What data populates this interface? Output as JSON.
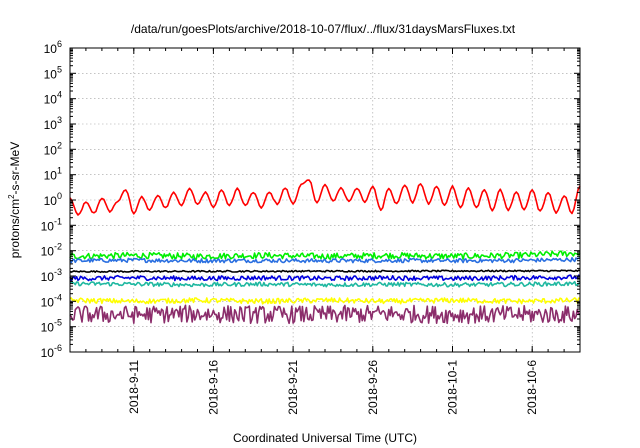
{
  "chart_data": {
    "type": "line",
    "title": "/data/run/goesPlots/archive/2018-10-07/flux/../flux/31daysMarsFluxes.txt",
    "xlabel": "Coordinated Universal Time (UTC)",
    "ylabel_main": "protons/cm",
    "ylabel_sup": "2",
    "ylabel_tail": "-s-sr-MeV",
    "yscale": "log",
    "ylim": [
      1e-06,
      1000000.0
    ],
    "xlim": [
      "2018-09-07T00:00",
      "2018-10-09T00:00"
    ],
    "grid": true,
    "x_ticks": [
      {
        "date": "2018-09-11",
        "label": "2018-9-11"
      },
      {
        "date": "2018-09-16",
        "label": "2018-9-16"
      },
      {
        "date": "2018-09-21",
        "label": "2018-9-21"
      },
      {
        "date": "2018-09-26",
        "label": "2018-9-26"
      },
      {
        "date": "2018-10-01",
        "label": "2018-10-1"
      },
      {
        "date": "2018-10-06",
        "label": "2018-10-6"
      }
    ],
    "y_ticks": [
      {
        "value": 1e-06,
        "base": "10",
        "exp": "-6"
      },
      {
        "value": 1e-05,
        "base": "10",
        "exp": "-5"
      },
      {
        "value": 0.0001,
        "base": "10",
        "exp": "-4"
      },
      {
        "value": 0.001,
        "base": "10",
        "exp": "-3"
      },
      {
        "value": 0.01,
        "base": "10",
        "exp": "-2"
      },
      {
        "value": 0.1,
        "base": "10",
        "exp": "-1"
      },
      {
        "value": 1,
        "base": "10",
        "exp": "0"
      },
      {
        "value": 10.0,
        "base": "10",
        "exp": "1"
      },
      {
        "value": 100.0,
        "base": "10",
        "exp": "2"
      },
      {
        "value": 1000.0,
        "base": "10",
        "exp": "3"
      },
      {
        "value": 10000.0,
        "base": "10",
        "exp": "4"
      },
      {
        "value": 100000.0,
        "base": "10",
        "exp": "5"
      },
      {
        "value": 1000000.0,
        "base": "10",
        "exp": "6"
      }
    ],
    "series": [
      {
        "color": "#ff0000",
        "values": [
          [
            "2018-09-07",
            1.2
          ],
          [
            "2018-09-07T12:00",
            0.25
          ],
          [
            "2018-09-08",
            0.8
          ],
          [
            "2018-09-08T12:00",
            0.3
          ],
          [
            "2018-09-09",
            1.2
          ],
          [
            "2018-09-09T12:00",
            0.35
          ],
          [
            "2018-09-10",
            0.9
          ],
          [
            "2018-09-10T12:00",
            2.5
          ],
          [
            "2018-09-11",
            0.3
          ],
          [
            "2018-09-11T12:00",
            1.3
          ],
          [
            "2018-09-12",
            0.4
          ],
          [
            "2018-09-12T12:00",
            1.5
          ],
          [
            "2018-09-13",
            0.5
          ],
          [
            "2018-09-13T12:00",
            2.0
          ],
          [
            "2018-09-14",
            0.6
          ],
          [
            "2018-09-14T12:00",
            3.0
          ],
          [
            "2018-09-15",
            0.7
          ],
          [
            "2018-09-15T12:00",
            2.0
          ],
          [
            "2018-09-16",
            0.5
          ],
          [
            "2018-09-16T12:00",
            2.5
          ],
          [
            "2018-09-17",
            0.6
          ],
          [
            "2018-09-17T12:00",
            2.8
          ],
          [
            "2018-09-18",
            0.6
          ],
          [
            "2018-09-18T12:00",
            2.0
          ],
          [
            "2018-09-19",
            0.5
          ],
          [
            "2018-09-19T12:00",
            2.0
          ],
          [
            "2018-09-20",
            0.7
          ],
          [
            "2018-09-20T12:00",
            3.0
          ],
          [
            "2018-09-21",
            0.7
          ],
          [
            "2018-09-21T12:00",
            4.0
          ],
          [
            "2018-09-22",
            6.0
          ],
          [
            "2018-09-22T12:00",
            0.8
          ],
          [
            "2018-09-23",
            4.0
          ],
          [
            "2018-09-23T12:00",
            0.9
          ],
          [
            "2018-09-24",
            3.0
          ],
          [
            "2018-09-24T12:00",
            0.9
          ],
          [
            "2018-09-25",
            3.0
          ],
          [
            "2018-09-25T12:00",
            0.8
          ],
          [
            "2018-09-26",
            3.5
          ],
          [
            "2018-09-26T12:00",
            0.4
          ],
          [
            "2018-09-27",
            3.0
          ],
          [
            "2018-09-27T12:00",
            0.7
          ],
          [
            "2018-09-28",
            4.0
          ],
          [
            "2018-09-28T12:00",
            0.8
          ],
          [
            "2018-09-29",
            4.5
          ],
          [
            "2018-09-29T12:00",
            0.7
          ],
          [
            "2018-09-30",
            3.5
          ],
          [
            "2018-09-30T12:00",
            0.6
          ],
          [
            "2018-10-01",
            3.5
          ],
          [
            "2018-10-01T12:00",
            0.5
          ],
          [
            "2018-10-02",
            3.0
          ],
          [
            "2018-10-02T12:00",
            0.5
          ],
          [
            "2018-10-03",
            2.5
          ],
          [
            "2018-10-03T12:00",
            0.4
          ],
          [
            "2018-10-04",
            2.5
          ],
          [
            "2018-10-04T12:00",
            0.4
          ],
          [
            "2018-10-05",
            2.0
          ],
          [
            "2018-10-05T12:00",
            0.4
          ],
          [
            "2018-10-06",
            2.5
          ],
          [
            "2018-10-06T12:00",
            0.35
          ],
          [
            "2018-10-07",
            2.0
          ],
          [
            "2018-10-07T12:00",
            0.3
          ],
          [
            "2018-10-08",
            1.5
          ],
          [
            "2018-10-08T12:00",
            0.3
          ],
          [
            "2018-10-09",
            3.5
          ]
        ]
      },
      {
        "color": "#00ee00",
        "values": [
          [
            "2018-09-07",
            0.006
          ],
          [
            "2018-09-11",
            0.0065
          ],
          [
            "2018-09-15",
            0.006
          ],
          [
            "2018-09-19",
            0.0065
          ],
          [
            "2018-09-23",
            0.006
          ],
          [
            "2018-09-27",
            0.0065
          ],
          [
            "2018-10-01",
            0.006
          ],
          [
            "2018-10-05",
            0.0065
          ],
          [
            "2018-10-09",
            0.008
          ]
        ]
      },
      {
        "color": "#2a6fe0",
        "values": [
          [
            "2018-09-07",
            0.004
          ],
          [
            "2018-09-11",
            0.0042
          ],
          [
            "2018-09-15",
            0.004
          ],
          [
            "2018-09-19",
            0.0041
          ],
          [
            "2018-09-23",
            0.004
          ],
          [
            "2018-09-27",
            0.0041
          ],
          [
            "2018-10-01",
            0.004
          ],
          [
            "2018-10-05",
            0.0041
          ],
          [
            "2018-10-09",
            0.0045
          ]
        ]
      },
      {
        "color": "#000000",
        "values": [
          [
            "2018-09-07",
            0.0015
          ],
          [
            "2018-10-09",
            0.0016
          ]
        ]
      },
      {
        "color": "#0000dd",
        "values": [
          [
            "2018-09-07",
            0.0008
          ],
          [
            "2018-09-11",
            0.00085
          ],
          [
            "2018-09-15",
            0.0008
          ],
          [
            "2018-09-19",
            0.00085
          ],
          [
            "2018-09-23",
            0.0008
          ],
          [
            "2018-09-27",
            0.00085
          ],
          [
            "2018-10-01",
            0.0008
          ],
          [
            "2018-10-05",
            0.00085
          ],
          [
            "2018-10-09",
            0.0009
          ]
        ]
      },
      {
        "color": "#1fb8a0",
        "values": [
          [
            "2018-09-07",
            0.0005
          ],
          [
            "2018-09-11",
            0.00048
          ],
          [
            "2018-09-15",
            0.00045
          ],
          [
            "2018-09-19",
            0.00048
          ],
          [
            "2018-09-23",
            0.00045
          ],
          [
            "2018-09-27",
            0.00047
          ],
          [
            "2018-10-01",
            0.00045
          ],
          [
            "2018-10-05",
            0.00047
          ],
          [
            "2018-10-09",
            0.0005
          ]
        ]
      },
      {
        "color": "#ffff00",
        "values": [
          [
            "2018-09-07",
            0.00011
          ],
          [
            "2018-09-11",
            0.0001
          ],
          [
            "2018-09-15",
            0.00011
          ],
          [
            "2018-09-19",
            0.0001
          ],
          [
            "2018-09-23",
            0.00011
          ],
          [
            "2018-09-27",
            0.0001
          ],
          [
            "2018-10-01",
            0.00011
          ],
          [
            "2018-10-05",
            0.0001
          ],
          [
            "2018-10-09",
            0.00011
          ]
        ]
      },
      {
        "color": "#8b2d6b",
        "values": [
          [
            "2018-09-07",
            3e-05
          ],
          [
            "2018-09-11",
            3e-05
          ],
          [
            "2018-09-15",
            3.2e-05
          ],
          [
            "2018-09-19",
            3e-05
          ],
          [
            "2018-09-23",
            3e-05
          ],
          [
            "2018-09-27",
            3.2e-05
          ],
          [
            "2018-10-01",
            3e-05
          ],
          [
            "2018-10-05",
            3e-05
          ],
          [
            "2018-10-09",
            3e-05
          ]
        ]
      }
    ]
  }
}
